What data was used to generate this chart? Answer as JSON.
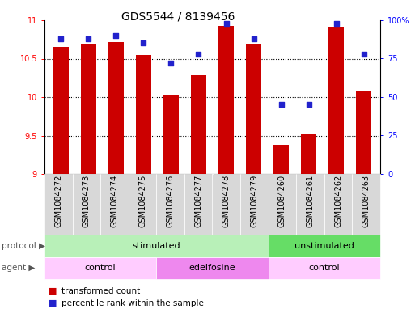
{
  "title": "GDS5544 / 8139456",
  "samples": [
    "GSM1084272",
    "GSM1084273",
    "GSM1084274",
    "GSM1084275",
    "GSM1084276",
    "GSM1084277",
    "GSM1084278",
    "GSM1084279",
    "GSM1084260",
    "GSM1084261",
    "GSM1084262",
    "GSM1084263"
  ],
  "bar_values": [
    10.65,
    10.7,
    10.72,
    10.55,
    10.02,
    10.28,
    10.93,
    10.7,
    9.38,
    9.52,
    10.92,
    10.08
  ],
  "dot_values": [
    88,
    88,
    90,
    85,
    72,
    78,
    98,
    88,
    45,
    45,
    98,
    78
  ],
  "bar_bottom": 9.0,
  "ylim_left": [
    9.0,
    11.0
  ],
  "ylim_right": [
    0,
    100
  ],
  "yticks_left": [
    9.0,
    9.5,
    10.0,
    10.5,
    11.0
  ],
  "yticks_right": [
    0,
    25,
    50,
    75,
    100
  ],
  "ytick_labels_right": [
    "0",
    "25",
    "50",
    "75",
    "100%"
  ],
  "bar_color": "#cc0000",
  "dot_color": "#2222cc",
  "protocol_groups": [
    {
      "label": "stimulated",
      "start": 0,
      "end": 8,
      "color": "#b8f0b8"
    },
    {
      "label": "unstimulated",
      "start": 8,
      "end": 12,
      "color": "#66dd66"
    }
  ],
  "agent_groups": [
    {
      "label": "control",
      "start": 0,
      "end": 4,
      "color": "#ffccff"
    },
    {
      "label": "edelfosine",
      "start": 4,
      "end": 8,
      "color": "#ee88ee"
    },
    {
      "label": "control",
      "start": 8,
      "end": 12,
      "color": "#ffccff"
    }
  ],
  "legend_bar_label": "transformed count",
  "legend_dot_label": "percentile rank within the sample",
  "protocol_label": "protocol",
  "agent_label": "agent",
  "title_fontsize": 10,
  "tick_fontsize": 7,
  "label_fontsize": 7,
  "row_fontsize": 8,
  "background_color": "#ffffff"
}
